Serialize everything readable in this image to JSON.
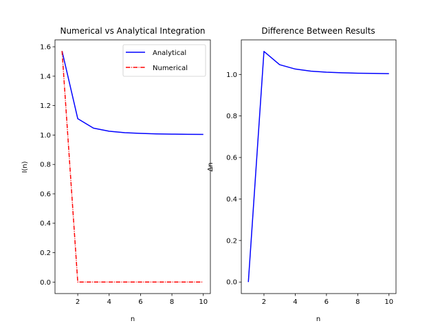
{
  "chart_data": [
    {
      "type": "line",
      "title": "Numerical vs Analytical Integration",
      "xlabel": "n",
      "ylabel": "I(n)",
      "xlim": [
        0.55,
        10.45
      ],
      "ylim": [
        -0.078,
        1.647
      ],
      "xticks": [
        2,
        4,
        6,
        8,
        10
      ],
      "yticks": [
        0.0,
        0.2,
        0.4,
        0.6,
        0.8,
        1.0,
        1.2,
        1.4,
        1.6
      ],
      "grid": false,
      "legend": "top-right",
      "x": [
        1,
        2,
        3,
        4,
        5,
        6,
        7,
        8,
        9,
        10
      ],
      "series": [
        {
          "name": "Analytical",
          "color": "#0000ff",
          "linestyle": "solid",
          "values": [
            1.571,
            1.111,
            1.047,
            1.026,
            1.016,
            1.011,
            1.008,
            1.006,
            1.005,
            1.004
          ]
        },
        {
          "name": "Numerical",
          "color": "#ff0000",
          "linestyle": "dashdot",
          "values": [
            1.571,
            0.0,
            0.0,
            0.0,
            0.0,
            0.0,
            0.0,
            0.0,
            0.0,
            0.0
          ]
        }
      ]
    },
    {
      "type": "line",
      "title": "Difference Between Results",
      "xlabel": "n",
      "ylabel": "Δn",
      "xlim": [
        0.55,
        10.45
      ],
      "ylim": [
        -0.0555,
        1.1665
      ],
      "xticks": [
        2,
        4,
        6,
        8,
        10
      ],
      "yticks": [
        0.0,
        0.2,
        0.4,
        0.6,
        0.8,
        1.0
      ],
      "grid": false,
      "legend": "none",
      "x": [
        1,
        2,
        3,
        4,
        5,
        6,
        7,
        8,
        9,
        10
      ],
      "series": [
        {
          "color": "#0000ff",
          "linestyle": "solid",
          "values": [
            0.0,
            1.111,
            1.047,
            1.026,
            1.016,
            1.011,
            1.008,
            1.006,
            1.005,
            1.004
          ]
        }
      ]
    }
  ]
}
